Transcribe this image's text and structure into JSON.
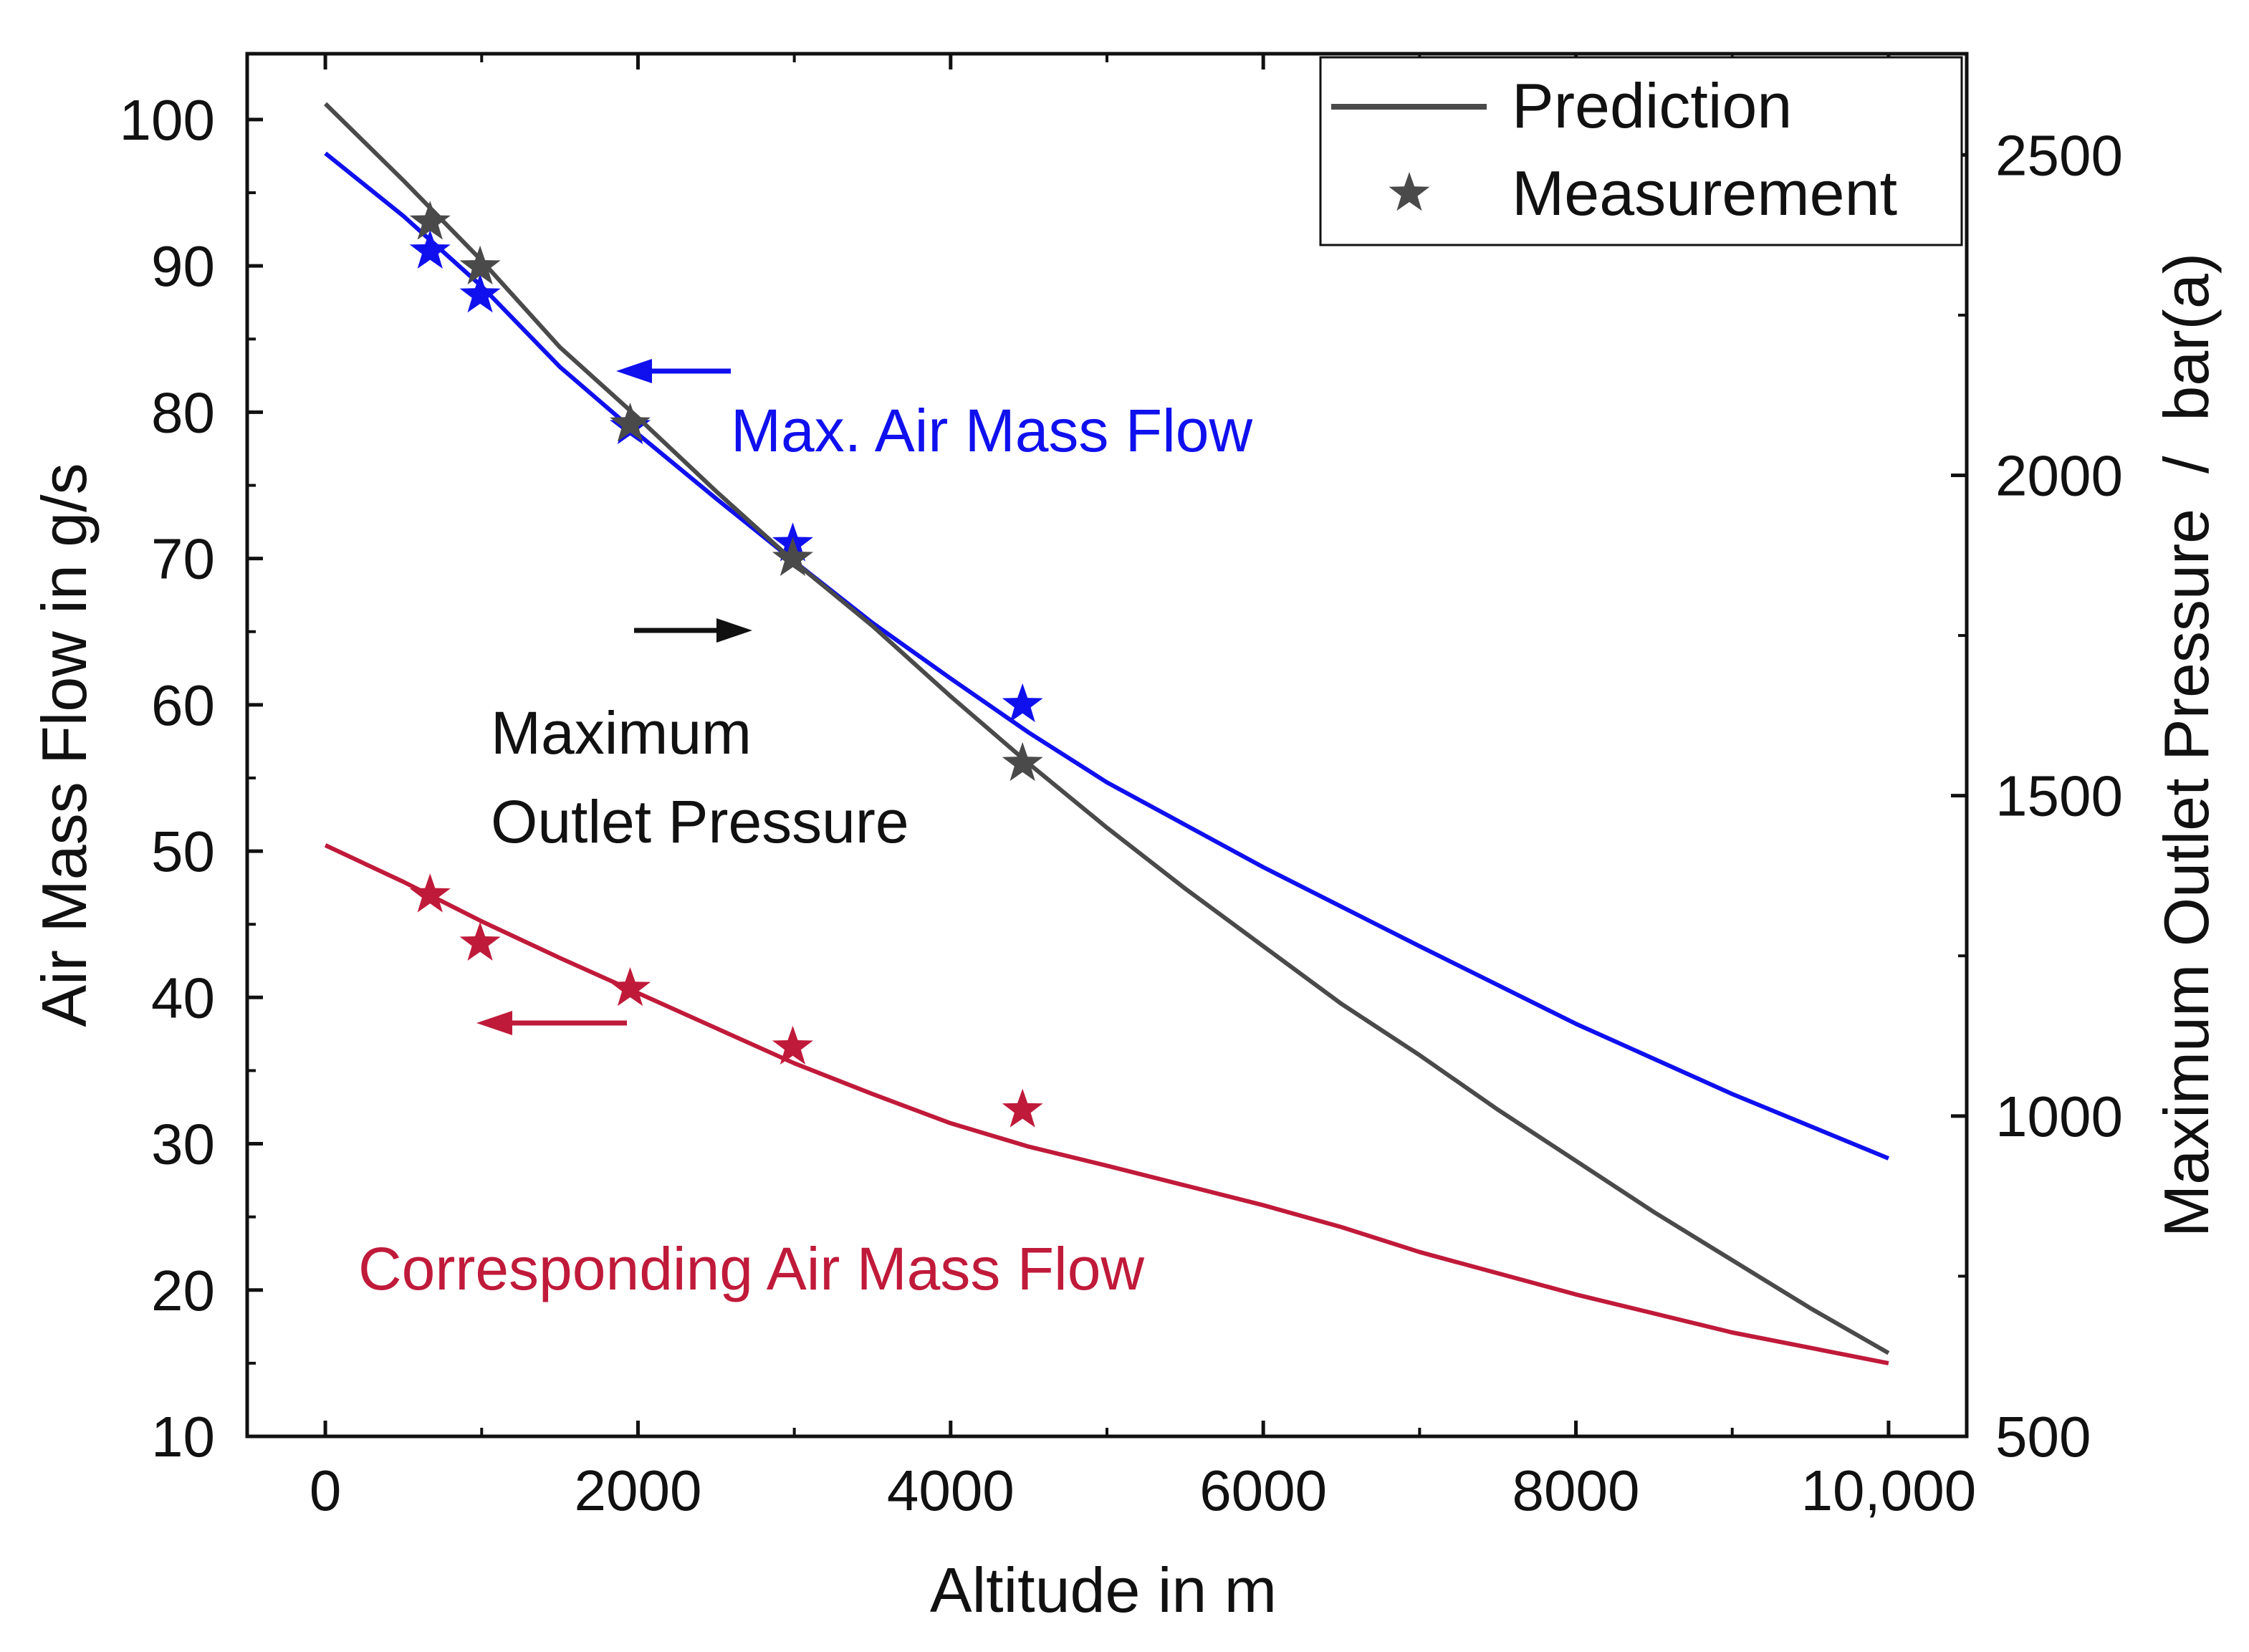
{
  "chart_data": {
    "type": "line",
    "xlabel": "Altitude in m",
    "ylabel_left": "Air Mass Flow in g/s",
    "ylabel_right": "Maximum Outlet Pressure  /  bar(a)",
    "xlim": [
      -500,
      10500
    ],
    "ylim_left": [
      10,
      104.5
    ],
    "ylim_right": [
      500,
      2658
    ],
    "x_ticks": [
      0,
      2000,
      4000,
      6000,
      8000,
      10000
    ],
    "x_tick_labels": [
      "0",
      "2000",
      "4000",
      "6000",
      "8000",
      "10,000"
    ],
    "y_left_ticks": [
      10,
      20,
      30,
      40,
      50,
      60,
      70,
      80,
      90,
      100
    ],
    "y_left_tick_labels": [
      "10",
      "20",
      "30",
      "40",
      "50",
      "60",
      "70",
      "80",
      "90",
      "100"
    ],
    "y_right_ticks": [
      500,
      1000,
      1500,
      2000,
      2500
    ],
    "y_right_tick_labels": [
      "500",
      "1000",
      "1500",
      "2000",
      "2500"
    ],
    "legend": {
      "position": "top-right",
      "entries": [
        {
          "label": "Prediction",
          "marker": "line",
          "color": "#4a4a4a"
        },
        {
          "label": "Measurement",
          "marker": "star",
          "color": "#4a4a4a"
        }
      ]
    },
    "series": [
      {
        "key": "max_flow",
        "axis": "left",
        "color": "#1010ee",
        "prediction": {
          "x": [
            0,
            500,
            1000,
            1500,
            2000,
            2500,
            3000,
            3500,
            4000,
            4500,
            5000,
            6000,
            7000,
            8000,
            9000,
            10000
          ],
          "y": [
            97.7,
            93.4,
            88.6,
            83.1,
            78.5,
            74.1,
            69.8,
            65.6,
            61.8,
            58.1,
            54.7,
            48.9,
            43.5,
            38.2,
            33.4,
            29.0
          ]
        },
        "measurement": {
          "x": [
            670,
            990,
            1950,
            2990,
            4460
          ],
          "y": [
            91.0,
            88.0,
            79.0,
            71.0,
            60.0
          ]
        }
      },
      {
        "key": "max_pressure",
        "axis": "right",
        "color": "#4a4a4a",
        "prediction": {
          "x": [
            0,
            500,
            1000,
            1500,
            2000,
            2500,
            3000,
            3500,
            4000,
            4500,
            5000,
            5500,
            6000,
            6500,
            7000,
            7500,
            8000,
            8500,
            9000,
            9500,
            10000
          ],
          "y": [
            2580,
            2460,
            2335,
            2200,
            2090,
            1975,
            1865,
            1765,
            1655,
            1550,
            1450,
            1355,
            1265,
            1175,
            1095,
            1010,
            930,
            850,
            775,
            700,
            630
          ]
        },
        "measurement": {
          "x": [
            670,
            990,
            1950,
            2990,
            4460
          ],
          "y": [
            2395,
            2325,
            2080,
            1870,
            1550
          ]
        }
      },
      {
        "key": "corresponding_flow",
        "axis": "left",
        "color": "#c01a3a",
        "prediction": {
          "x": [
            0,
            500,
            1000,
            1500,
            2000,
            2500,
            3000,
            3500,
            4000,
            4500,
            5000,
            6000,
            6500,
            7000,
            8000,
            9000,
            10000
          ],
          "y": [
            50.4,
            47.9,
            45.2,
            42.7,
            40.3,
            37.9,
            35.5,
            33.4,
            31.4,
            29.8,
            28.5,
            25.8,
            24.3,
            22.6,
            19.7,
            17.1,
            15.0
          ]
        },
        "measurement": {
          "x": [
            670,
            990,
            1950,
            2990,
            4460
          ],
          "y": [
            47.0,
            43.7,
            40.6,
            36.6,
            32.3
          ]
        }
      }
    ],
    "annotations": [
      {
        "key": "max_flow_label",
        "text": "Max. Air Mass Flow",
        "color": "#1010ee"
      },
      {
        "key": "pressure_label_1",
        "text": "Maximum",
        "color": "#111111"
      },
      {
        "key": "pressure_label_2",
        "text": "Outlet Pressure",
        "color": "#111111"
      },
      {
        "key": "corresponding_label",
        "text": "Corresponding Air Mass Flow",
        "color": "#c01a3a"
      }
    ],
    "arrows": [
      {
        "key": "max_flow_arrow",
        "direction": "left",
        "points_to": "left axis",
        "color": "#1010ee"
      },
      {
        "key": "pressure_arrow",
        "direction": "right",
        "points_to": "right axis",
        "color": "#111111"
      },
      {
        "key": "corresponding_arrow",
        "direction": "left",
        "points_to": "left axis",
        "color": "#c01a3a"
      }
    ]
  }
}
